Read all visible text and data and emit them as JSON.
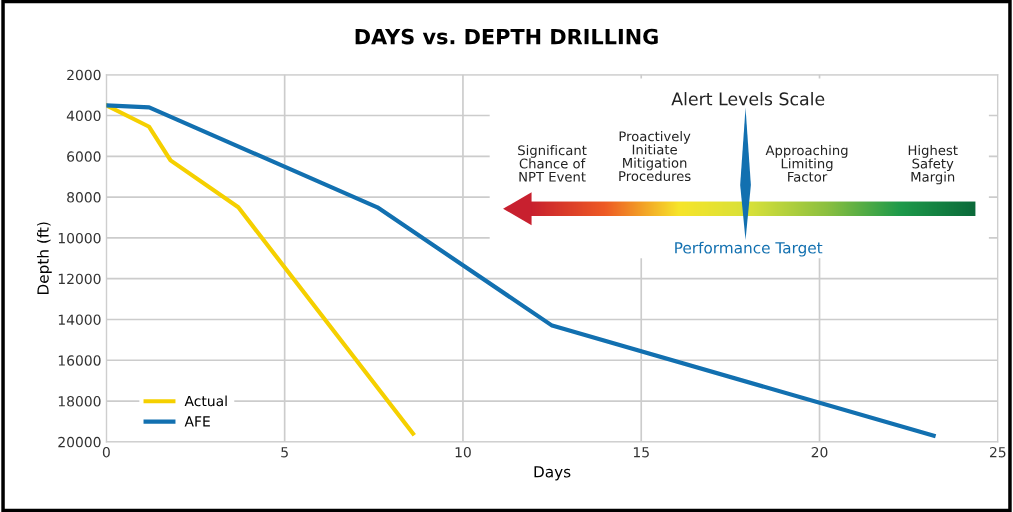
{
  "chart_data": {
    "type": "line",
    "title": "DAYS vs. DEPTH DRILLING",
    "xlabel": "Days",
    "ylabel": "Depth (ft)",
    "xlim": [
      0,
      25
    ],
    "xticks": [
      0,
      5,
      10,
      15,
      20,
      25
    ],
    "ylim": [
      20000,
      2000
    ],
    "yticks": [
      2000,
      4000,
      6000,
      8000,
      10000,
      12000,
      14000,
      16000,
      18000,
      20000
    ],
    "grid": true,
    "legend": "bottom left",
    "marker": "none",
    "line_style": "solid",
    "series": [
      {
        "name": "Actual",
        "color": "#f5d000",
        "x": [
          0,
          1.2,
          1.8,
          3.7,
          8.6
        ],
        "values": [
          3500,
          4550,
          6200,
          8500,
          19600
        ]
      },
      {
        "name": "AFE",
        "color": "#1270b0",
        "x": [
          0,
          1.2,
          7.6,
          12.5,
          23.2
        ],
        "values": [
          3500,
          3600,
          8500,
          14300,
          19700
        ]
      }
    ],
    "annotations": [
      "Alert Levels Scale",
      "Significant\nChance of\nNPT Event",
      "Proactively\nInitiate\nMitigation\nProcedures",
      "Approaching\nLimiting\nFactor",
      "Highest\nSafety\nMargin",
      "Performance Target"
    ]
  }
}
